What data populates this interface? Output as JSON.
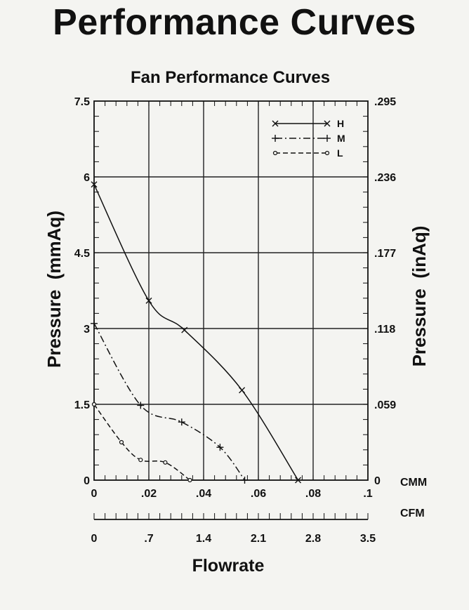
{
  "page_title": "Performance Curves",
  "chart_data": {
    "type": "line",
    "title": "Fan Performance Curves",
    "xlabel": "Flowrate",
    "ylabel_left": "Pressure  (mmAq)",
    "ylabel_right": "Pressure  (inAq)",
    "x_unit_primary": "CMM",
    "x_unit_secondary": "CFM",
    "xlim": [
      0,
      0.1
    ],
    "ylim": [
      0,
      7.5
    ],
    "x_ticks": [
      0,
      0.02,
      0.04,
      0.06,
      0.08,
      0.1
    ],
    "x_tick_labels": [
      "0",
      ".02",
      ".04",
      ".06",
      ".08",
      ".1"
    ],
    "x2_ticks": [
      0,
      0.7,
      1.4,
      2.1,
      2.8,
      3.5
    ],
    "x2_tick_labels": [
      "0",
      ".7",
      "1.4",
      "2.1",
      "2.8",
      "3.5"
    ],
    "x2_lim": [
      0,
      3.5
    ],
    "y_ticks": [
      0,
      1.5,
      3,
      4.5,
      6,
      7.5
    ],
    "y_tick_labels": [
      "0",
      "1.5",
      "3",
      "4.5",
      "6",
      "7.5"
    ],
    "y2_tick_labels": [
      "0",
      ".059",
      ".118",
      ".177",
      ".236",
      ".295"
    ],
    "grid": true,
    "legend_position": "top-right",
    "series": [
      {
        "name": "H",
        "line_style": "solid",
        "marker": "x",
        "x": [
          0,
          0.02,
          0.033,
          0.054,
          0.0745
        ],
        "y": [
          5.85,
          3.55,
          2.97,
          1.78,
          0.0
        ]
      },
      {
        "name": "M",
        "line_style": "dash-dot",
        "marker": "plus",
        "x": [
          0,
          0.017,
          0.032,
          0.046,
          0.055
        ],
        "y": [
          3.1,
          1.48,
          1.15,
          0.65,
          0.0
        ]
      },
      {
        "name": "L",
        "line_style": "dashed",
        "marker": "circle",
        "x": [
          0,
          0.01,
          0.017,
          0.026,
          0.035
        ],
        "y": [
          1.5,
          0.75,
          0.4,
          0.35,
          0.0
        ]
      }
    ]
  }
}
